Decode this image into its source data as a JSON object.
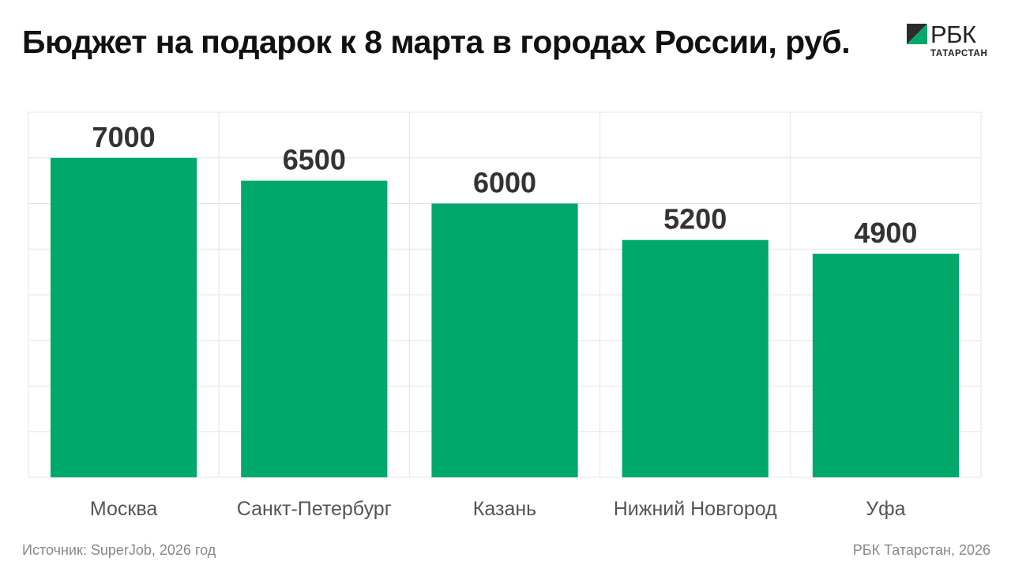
{
  "header": {
    "title": "Бюджет на подарок к 8 марта в городах России, руб."
  },
  "logo": {
    "word": "РБК",
    "sub": "ТАТАРСТАН",
    "colors": {
      "dark": "#2b2b2b",
      "green": "#00a86b"
    }
  },
  "chart_data": {
    "type": "bar",
    "title": "Бюджет на подарок к 8 марта в городах России, руб.",
    "categories": [
      "Москва",
      "Санкт-Петербург",
      "Казань",
      "Нижний Новгород",
      "Уфа"
    ],
    "values": [
      7000,
      6500,
      6000,
      5200,
      4900
    ],
    "data_labels": [
      "7000",
      "6500",
      "6000",
      "5200",
      "4900"
    ],
    "xlabel": "",
    "ylabel": "",
    "ylim": [
      0,
      8000
    ],
    "y_ticks_shown": false,
    "grid": true,
    "legend": "none",
    "bar_color": "#00a86b",
    "grid_color": "#e4e4e4"
  },
  "footer": {
    "source": "Источник: SuperJob, 2026 год",
    "credit": "РБК Татарстан, 2026"
  }
}
